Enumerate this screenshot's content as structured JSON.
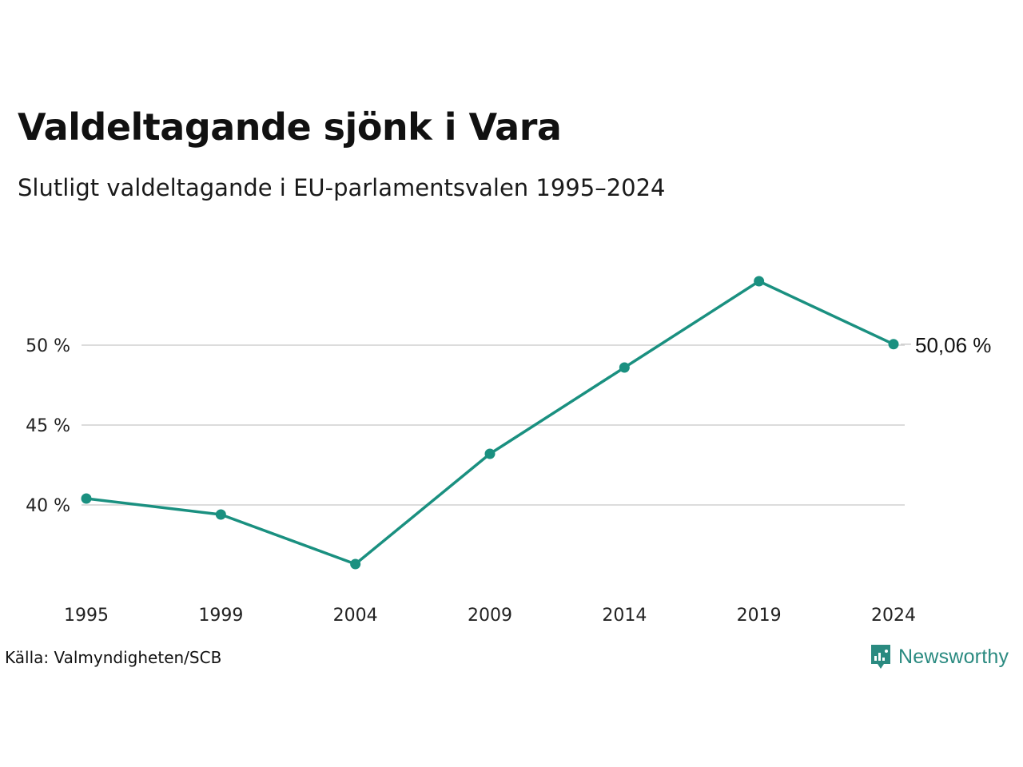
{
  "title": "Valdeltagande sjönk i Vara",
  "subtitle": "Slutligt valdeltagande i EU-parlamentsvalen 1995–2024",
  "source": "Källa: Valmyndigheten/SCB",
  "brand": {
    "name": "Newsworthy",
    "icon": "newsworthy-logo-icon",
    "color": "#2a8a80"
  },
  "chart_data": {
    "type": "line",
    "x": [
      1995,
      1999,
      2004,
      2009,
      2014,
      2019,
      2024
    ],
    "x_tick_labels": [
      "1995",
      "1999",
      "2004",
      "2009",
      "2014",
      "2019",
      "2024"
    ],
    "series": [
      {
        "values": [
          40.4,
          39.4,
          36.3,
          43.2,
          48.6,
          54.0,
          50.06
        ],
        "color": "#1a9080"
      }
    ],
    "y_ticks": [
      40,
      45,
      50
    ],
    "y_tick_labels": [
      "40 %",
      "45 %",
      "50 %"
    ],
    "ylim": [
      34.6,
      57.6
    ],
    "grid": true,
    "end_label": "50,06 %"
  }
}
